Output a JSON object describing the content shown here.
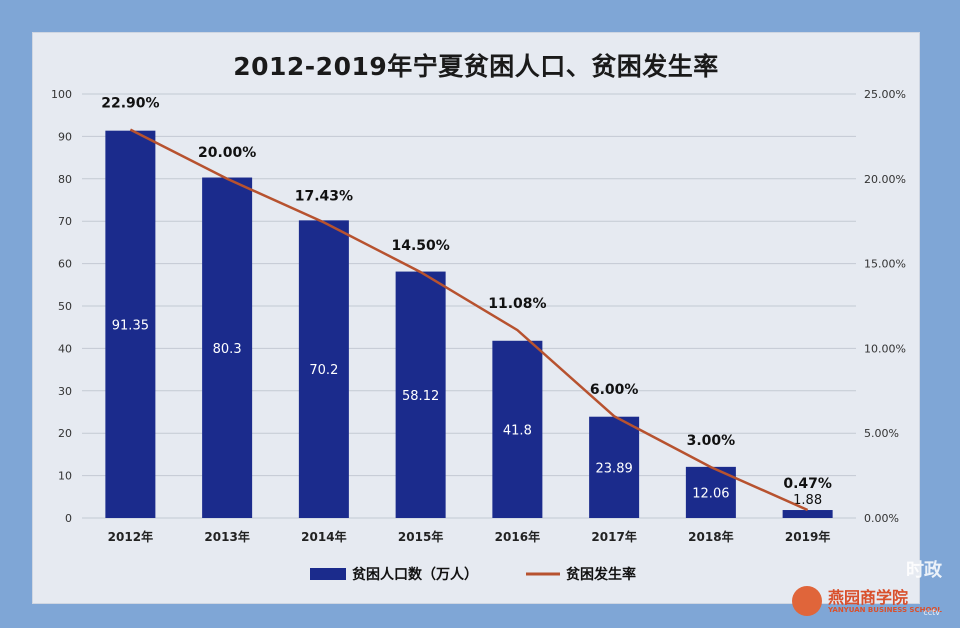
{
  "chart_data": {
    "type": "bar",
    "title": "2012-2019年宁夏贫困人口、贫困发生率",
    "categories": [
      "2012年",
      "2013年",
      "2014年",
      "2015年",
      "2016年",
      "2017年",
      "2018年",
      "2019年"
    ],
    "series": [
      {
        "name": "贫困人口数（万人）",
        "type": "bar",
        "axis": "left",
        "color": "#1b2b8c",
        "values": [
          91.35,
          80.3,
          70.2,
          58.12,
          41.8,
          23.89,
          12.06,
          1.88
        ],
        "labels": [
          "91.35",
          "80.3",
          "70.2",
          "58.12",
          "41.8",
          "23.89",
          "12.06",
          "1.88"
        ]
      },
      {
        "name": "贫困发生率",
        "type": "line",
        "axis": "right",
        "color": "#b7522f",
        "values": [
          22.9,
          20.0,
          17.43,
          14.5,
          11.08,
          6.0,
          3.0,
          0.47
        ],
        "labels": [
          "22.90%",
          "20.00%",
          "17.43%",
          "14.50%",
          "11.08%",
          "6.00%",
          "3.00%",
          "0.47%"
        ]
      }
    ],
    "y_left": {
      "min": 0,
      "max": 100,
      "ticks": [
        "0",
        "10",
        "20",
        "30",
        "40",
        "50",
        "60",
        "70",
        "80",
        "90",
        "100"
      ]
    },
    "y_right": {
      "min": 0,
      "max": 25,
      "ticks": [
        "0.00%",
        "5.00%",
        "10.00%",
        "15.00%",
        "20.00%",
        "25.00%"
      ]
    },
    "grid": true,
    "legend": "bottom"
  },
  "watermark": {
    "name": "燕园商学院",
    "sub": "YANYUAN BUSINESS SCHOOL",
    "stamp": "时政",
    "broadcaster": "cctv"
  }
}
